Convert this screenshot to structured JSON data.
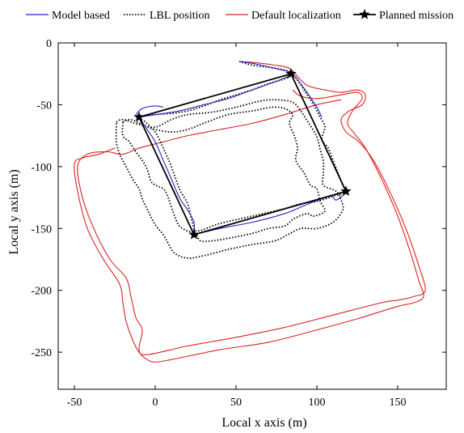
{
  "chart_data": {
    "type": "line",
    "title": "",
    "xlabel": "Local x axis (m)",
    "ylabel": "Local y axis (m)",
    "xlim": [
      -60,
      180
    ],
    "ylim": [
      -280,
      0
    ],
    "xticks": [
      -50,
      0,
      50,
      100,
      150
    ],
    "yticks": [
      0,
      -50,
      -100,
      -150,
      -200,
      -250
    ],
    "grid": false,
    "legend": {
      "placement": "top",
      "orientation": "horizontal"
    },
    "series": [
      {
        "name": "Model based",
        "color": "#2222cc",
        "style": "solid",
        "segments": [
          [
            [
              52,
              -15
            ],
            [
              62,
              -17
            ],
            [
              72,
              -20
            ],
            [
              82,
              -23
            ],
            [
              85,
              -25
            ],
            [
              90,
              -33
            ],
            [
              95,
              -42
            ],
            [
              100,
              -52
            ],
            [
              103,
              -60
            ]
          ],
          [
            [
              -10,
              -60
            ],
            [
              0,
              -58
            ],
            [
              15,
              -55
            ],
            [
              30,
              -50
            ],
            [
              45,
              -45
            ],
            [
              60,
              -38
            ],
            [
              75,
              -31
            ],
            [
              84,
              -26
            ]
          ],
          [
            [
              -10,
              -60
            ],
            [
              -5,
              -70
            ],
            [
              0,
              -80
            ],
            [
              5,
              -95
            ],
            [
              10,
              -110
            ],
            [
              15,
              -125
            ],
            [
              20,
              -135
            ],
            [
              24,
              -145
            ],
            [
              24,
              -155
            ]
          ],
          [
            [
              24,
              -155
            ],
            [
              40,
              -150
            ],
            [
              60,
              -145
            ],
            [
              80,
              -138
            ],
            [
              95,
              -130
            ],
            [
              108,
              -124
            ],
            [
              112,
              -127
            ],
            [
              118,
              -121
            ]
          ],
          [
            [
              -12,
              -58
            ],
            [
              -8,
              -53
            ],
            [
              0,
              -51
            ],
            [
              5,
              -52
            ]
          ]
        ]
      },
      {
        "name": "LBL position",
        "color": "#000000",
        "style": "dotted",
        "segments": [
          [
            [
              52,
              -15
            ],
            [
              60,
              -18
            ],
            [
              72,
              -20
            ],
            [
              80,
              -22
            ],
            [
              84,
              -24
            ],
            [
              88,
              -30
            ],
            [
              93,
              -40
            ],
            [
              98,
              -50
            ],
            [
              102,
              -60
            ],
            [
              105,
              -68
            ],
            [
              103,
              -78
            ],
            [
              107,
              -85
            ],
            [
              110,
              -95
            ],
            [
              113,
              -105
            ],
            [
              116,
              -115
            ],
            [
              118,
              -120
            ],
            [
              110,
              -124
            ],
            [
              100,
              -128
            ],
            [
              90,
              -130
            ],
            [
              80,
              -134
            ],
            [
              60,
              -140
            ],
            [
              40,
              -146
            ],
            [
              26,
              -152
            ],
            [
              23,
              -145
            ],
            [
              20,
              -130
            ],
            [
              15,
              -118
            ],
            [
              10,
              -100
            ],
            [
              5,
              -85
            ],
            [
              0,
              -72
            ],
            [
              -6,
              -64
            ],
            [
              -10,
              -60
            ],
            [
              0,
              -58
            ],
            [
              10,
              -57
            ],
            [
              20,
              -55
            ],
            [
              30,
              -51
            ],
            [
              40,
              -46
            ],
            [
              50,
              -42
            ],
            [
              60,
              -38
            ],
            [
              70,
              -33
            ],
            [
              78,
              -30
            ],
            [
              82,
              -28
            ]
          ],
          [
            [
              -20,
              -64
            ],
            [
              -15,
              -62
            ],
            [
              -5,
              -68
            ],
            [
              0,
              -70
            ],
            [
              10,
              -72
            ],
            [
              20,
              -70
            ],
            [
              30,
              -65
            ],
            [
              45,
              -58
            ],
            [
              60,
              -55
            ],
            [
              72,
              -52
            ],
            [
              80,
              -53
            ],
            [
              85,
              -58
            ],
            [
              83,
              -65
            ],
            [
              86,
              -75
            ],
            [
              88,
              -85
            ],
            [
              87,
              -95
            ],
            [
              92,
              -105
            ],
            [
              96,
              -115
            ],
            [
              100,
              -118
            ],
            [
              102,
              -128
            ],
            [
              105,
              -136
            ],
            [
              98,
              -140
            ],
            [
              94,
              -138
            ],
            [
              86,
              -142
            ],
            [
              80,
              -148
            ],
            [
              70,
              -150
            ],
            [
              60,
              -154
            ],
            [
              45,
              -158
            ],
            [
              35,
              -160
            ],
            [
              28,
              -160
            ],
            [
              25,
              -154
            ],
            [
              20,
              -152
            ],
            [
              15,
              -148
            ],
            [
              12,
              -140
            ],
            [
              8,
              -125
            ],
            [
              5,
              -118
            ],
            [
              -2,
              -113
            ],
            [
              -5,
              -102
            ],
            [
              -8,
              -95
            ],
            [
              -12,
              -88
            ],
            [
              -16,
              -80
            ],
            [
              -20,
              -75
            ],
            [
              -20,
              -64
            ]
          ],
          [
            [
              -24,
              -64
            ],
            [
              -20,
              -62
            ],
            [
              -10,
              -66
            ],
            [
              0,
              -68
            ],
            [
              10,
              -62
            ],
            [
              20,
              -58
            ],
            [
              35,
              -56
            ],
            [
              50,
              -52
            ],
            [
              65,
              -47
            ],
            [
              75,
              -46
            ],
            [
              85,
              -48
            ],
            [
              90,
              -55
            ],
            [
              95,
              -65
            ],
            [
              100,
              -76
            ],
            [
              102,
              -86
            ],
            [
              104,
              -96
            ],
            [
              104,
              -106
            ],
            [
              104,
              -115
            ],
            [
              112,
              -120
            ],
            [
              115,
              -127
            ],
            [
              116,
              -135
            ],
            [
              110,
              -145
            ],
            [
              100,
              -150
            ],
            [
              90,
              -150
            ],
            [
              82,
              -155
            ],
            [
              74,
              -160
            ],
            [
              60,
              -163
            ],
            [
              45,
              -167
            ],
            [
              30,
              -172
            ],
            [
              20,
              -174
            ],
            [
              12,
              -170
            ],
            [
              8,
              -162
            ],
            [
              5,
              -155
            ],
            [
              0,
              -147
            ],
            [
              -4,
              -137
            ],
            [
              -8,
              -126
            ],
            [
              -10,
              -118
            ],
            [
              -14,
              -110
            ],
            [
              -18,
              -100
            ],
            [
              -22,
              -90
            ],
            [
              -24,
              -80
            ],
            [
              -24,
              -64
            ]
          ]
        ]
      },
      {
        "name": "Default localization",
        "color": "#dd2222",
        "style": "solid",
        "segments": [
          [
            [
              52,
              -15
            ],
            [
              62,
              -16
            ],
            [
              74,
              -18
            ],
            [
              82,
              -20
            ],
            [
              86,
              -24
            ],
            [
              90,
              -30
            ],
            [
              95,
              -35
            ],
            [
              105,
              -38
            ],
            [
              115,
              -40
            ],
            [
              125,
              -38
            ],
            [
              130,
              -42
            ],
            [
              128,
              -50
            ],
            [
              120,
              -55
            ],
            [
              115,
              -62
            ],
            [
              118,
              -72
            ],
            [
              126,
              -80
            ],
            [
              135,
              -95
            ],
            [
              145,
              -120
            ],
            [
              155,
              -150
            ],
            [
              163,
              -180
            ],
            [
              167,
              -200
            ],
            [
              160,
              -205
            ],
            [
              150,
              -208
            ],
            [
              140,
              -210
            ],
            [
              110,
              -220
            ],
            [
              80,
              -230
            ],
            [
              50,
              -238
            ],
            [
              20,
              -245
            ],
            [
              -5,
              -252
            ],
            [
              -10,
              -248
            ],
            [
              -8,
              -232
            ],
            [
              -12,
              -222
            ],
            [
              -15,
              -205
            ],
            [
              -18,
              -190
            ],
            [
              -28,
              -175
            ],
            [
              -38,
              -150
            ],
            [
              -45,
              -125
            ],
            [
              -48,
              -100
            ],
            [
              -42,
              -90
            ],
            [
              -30,
              -88
            ],
            [
              -20,
              -90
            ],
            [
              -10,
              -85
            ],
            [
              5,
              -80
            ],
            [
              20,
              -75
            ],
            [
              40,
              -70
            ],
            [
              60,
              -65
            ],
            [
              80,
              -58
            ],
            [
              100,
              -50
            ],
            [
              115,
              -46
            ]
          ],
          [
            [
              -25,
              -85
            ],
            [
              -35,
              -90
            ],
            [
              -45,
              -93
            ],
            [
              -50,
              -98
            ],
            [
              -48,
              -120
            ],
            [
              -42,
              -150
            ],
            [
              -32,
              -175
            ],
            [
              -22,
              -195
            ],
            [
              -20,
              -210
            ],
            [
              -18,
              -225
            ],
            [
              -14,
              -240
            ],
            [
              -10,
              -250
            ],
            [
              -5,
              -256
            ],
            [
              0,
              -258
            ],
            [
              10,
              -256
            ],
            [
              40,
              -248
            ],
            [
              70,
              -242
            ],
            [
              100,
              -232
            ],
            [
              125,
              -223
            ],
            [
              150,
              -213
            ],
            [
              160,
              -210
            ],
            [
              166,
              -205
            ],
            [
              163,
              -192
            ],
            [
              158,
              -170
            ],
            [
              150,
              -140
            ],
            [
              140,
              -110
            ],
            [
              130,
              -85
            ],
            [
              123,
              -73
            ],
            [
              119,
              -65
            ],
            [
              122,
              -55
            ],
            [
              128,
              -45
            ],
            [
              125,
              -40
            ],
            [
              115,
              -42
            ],
            [
              100,
              -45
            ],
            [
              90,
              -43
            ],
            [
              85,
              -38
            ]
          ]
        ]
      },
      {
        "name": "Planned mission",
        "color": "#000000",
        "style": "solid-star",
        "points": [
          [
            84,
            -25
          ],
          [
            118,
            -120
          ],
          [
            24,
            -155
          ],
          [
            -10,
            -60
          ],
          [
            84,
            -25
          ]
        ]
      }
    ]
  }
}
